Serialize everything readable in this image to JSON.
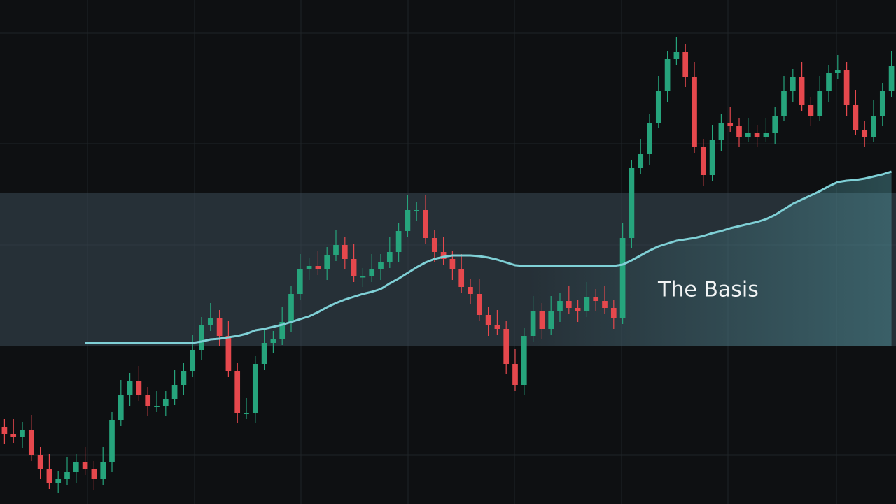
{
  "chart_data": {
    "type": "candlestick",
    "annotation": "The Basis",
    "ylim": [
      0,
      720
    ],
    "grid": true,
    "up_color": "#26a47c",
    "down_color": "#e5484d",
    "band": {
      "values": [
        225,
        445
      ],
      "color": "#3a4a55"
    },
    "basis": {
      "color": "#7fd0d6",
      "values": [
        null,
        null,
        null,
        null,
        null,
        null,
        null,
        null,
        null,
        230,
        230,
        230,
        230,
        230,
        230,
        230,
        230,
        230,
        230,
        230,
        230,
        230,
        232,
        235,
        236,
        238,
        240,
        243,
        248,
        250,
        253,
        256,
        260,
        264,
        268,
        274,
        281,
        287,
        292,
        296,
        300,
        303,
        307,
        315,
        322,
        330,
        338,
        345,
        350,
        353,
        355,
        355,
        355,
        354,
        352,
        349,
        345,
        341,
        340,
        340,
        340,
        340,
        340,
        340,
        340,
        340,
        340,
        340,
        340,
        342,
        348,
        355,
        362,
        368,
        372,
        376,
        378,
        380,
        383,
        387,
        390,
        394,
        397,
        400,
        403,
        407,
        413,
        421,
        429,
        435,
        441,
        447,
        454,
        460,
        462,
        463,
        465,
        468,
        471,
        475
      ]
    },
    "open": [
      110,
      100,
      95,
      105,
      70,
      50,
      30,
      35,
      45,
      60,
      50,
      35,
      60,
      120,
      155,
      175,
      155,
      140,
      140,
      150,
      170,
      190,
      220,
      255,
      265,
      240,
      190,
      130,
      130,
      200,
      230,
      235,
      260,
      300,
      335,
      340,
      335,
      355,
      370,
      350,
      325,
      325,
      335,
      345,
      360,
      390,
      420,
      420,
      380,
      360,
      350,
      335,
      310,
      300,
      270,
      255,
      250,
      200,
      170,
      240,
      275,
      250,
      275,
      290,
      280,
      275,
      295,
      290,
      280,
      265,
      380,
      480,
      500,
      545,
      590,
      635,
      645,
      610,
      510,
      470,
      520,
      545,
      540,
      525,
      530,
      525,
      530,
      555,
      590,
      610,
      570,
      555,
      590,
      615,
      620,
      570,
      535,
      525,
      555,
      590
    ],
    "high": [
      122,
      122,
      117,
      127,
      82,
      72,
      47,
      67,
      72,
      82,
      62,
      82,
      132,
      177,
      187,
      197,
      167,
      162,
      162,
      192,
      202,
      242,
      267,
      287,
      277,
      262,
      202,
      152,
      212,
      252,
      247,
      282,
      312,
      357,
      352,
      362,
      367,
      392,
      382,
      372,
      337,
      357,
      357,
      382,
      402,
      442,
      432,
      442,
      392,
      382,
      362,
      357,
      322,
      322,
      282,
      277,
      262,
      222,
      252,
      297,
      287,
      297,
      302,
      312,
      292,
      317,
      307,
      312,
      292,
      402,
      492,
      522,
      557,
      612,
      647,
      667,
      657,
      632,
      522,
      542,
      557,
      567,
      552,
      552,
      542,
      552,
      567,
      612,
      622,
      632,
      582,
      612,
      627,
      642,
      632,
      592,
      547,
      577,
      602,
      647
    ],
    "low": [
      85,
      87,
      80,
      62,
      35,
      22,
      15,
      27,
      30,
      42,
      20,
      27,
      45,
      112,
      140,
      147,
      125,
      132,
      125,
      142,
      155,
      182,
      205,
      247,
      225,
      182,
      115,
      122,
      115,
      192,
      215,
      227,
      245,
      292,
      320,
      327,
      320,
      347,
      335,
      317,
      310,
      317,
      320,
      337,
      345,
      382,
      405,
      372,
      345,
      342,
      320,
      302,
      285,
      262,
      240,
      242,
      185,
      162,
      155,
      232,
      235,
      242,
      260,
      272,
      260,
      267,
      275,
      272,
      250,
      257,
      365,
      472,
      485,
      537,
      575,
      627,
      595,
      502,
      455,
      462,
      505,
      532,
      510,
      517,
      510,
      517,
      515,
      547,
      575,
      562,
      540,
      547,
      575,
      607,
      555,
      527,
      510,
      517,
      540,
      582
    ],
    "close": [
      100,
      95,
      105,
      70,
      50,
      30,
      35,
      45,
      60,
      50,
      35,
      60,
      120,
      155,
      175,
      155,
      140,
      140,
      150,
      170,
      190,
      220,
      255,
      265,
      240,
      190,
      130,
      130,
      200,
      230,
      235,
      260,
      300,
      335,
      340,
      335,
      355,
      370,
      350,
      325,
      325,
      335,
      345,
      360,
      390,
      420,
      420,
      380,
      360,
      350,
      335,
      310,
      300,
      270,
      255,
      250,
      200,
      170,
      240,
      275,
      250,
      275,
      290,
      280,
      275,
      295,
      290,
      280,
      265,
      380,
      480,
      500,
      545,
      590,
      635,
      645,
      610,
      510,
      470,
      520,
      545,
      540,
      525,
      530,
      525,
      530,
      555,
      590,
      610,
      570,
      555,
      590,
      615,
      620,
      570,
      535,
      525,
      555,
      590,
      625
    ]
  }
}
